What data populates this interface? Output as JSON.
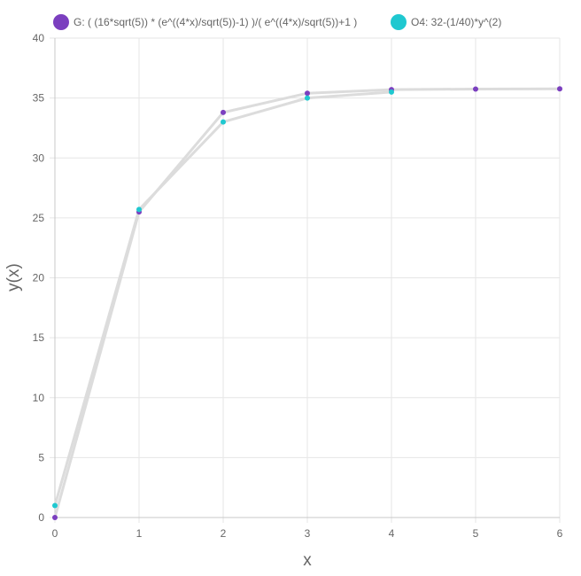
{
  "chart_data": {
    "type": "line",
    "xlabel": "x",
    "ylabel": "y(x)",
    "xlim": [
      0,
      6
    ],
    "ylim": [
      0,
      40
    ],
    "x_ticks": [
      "0",
      "1",
      "2",
      "3",
      "4",
      "5",
      "6"
    ],
    "y_ticks": [
      "0",
      "5",
      "10",
      "15",
      "20",
      "25",
      "30",
      "35",
      "40"
    ],
    "grid": true,
    "legend_position": "top-left",
    "series": [
      {
        "name": "G: ( (16*sqrt(5)) * (e^((4*x)/sqrt(5))-1) )/( e^((4*x)/sqrt(5))+1 )",
        "color": "#7b3fbf",
        "line_color": "#dcdcdc",
        "x": [
          0,
          1,
          2,
          3,
          4,
          5,
          6
        ],
        "y": [
          0,
          25.5,
          33.8,
          35.4,
          35.7,
          35.75,
          35.77
        ]
      },
      {
        "name": "O4: 32-(1/40)*y^(2)",
        "color": "#1fc8d0",
        "line_color": "#dcdcdc",
        "x": [
          0,
          1,
          2,
          3,
          4
        ],
        "y": [
          1,
          25.7,
          33.0,
          35.0,
          35.5
        ]
      }
    ]
  }
}
